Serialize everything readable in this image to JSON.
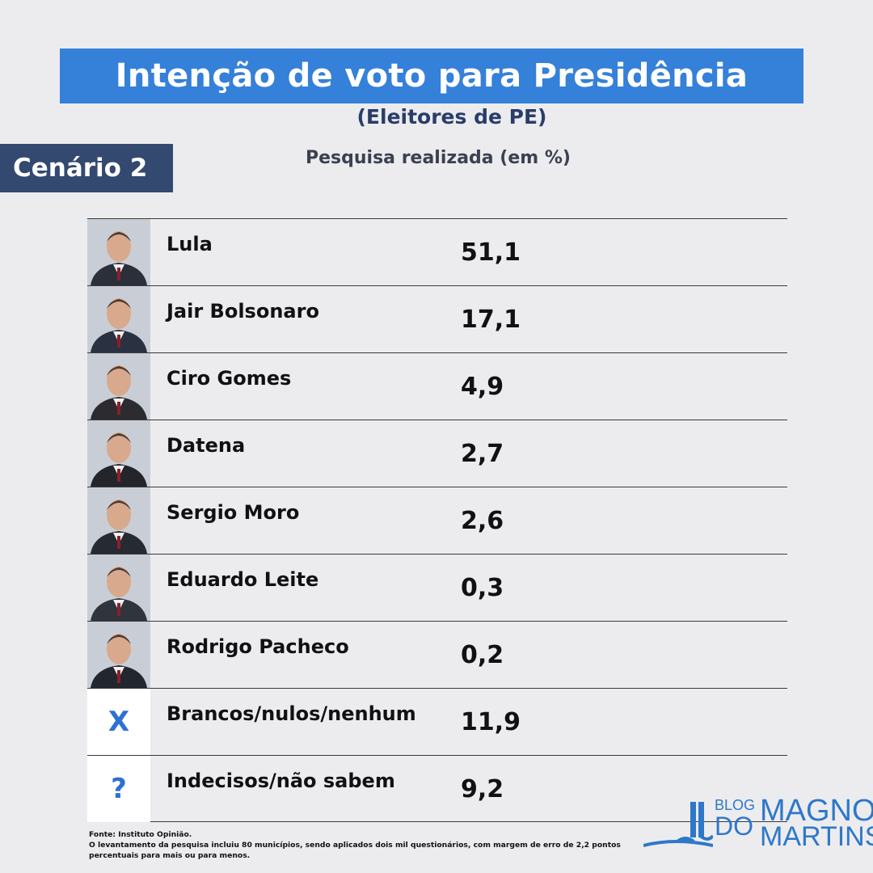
{
  "title": "Intenção de voto para Presidência",
  "subtitle": "(Eleitores de PE)",
  "scenario": "Cenário 2",
  "survey_note": "Pesquisa realizada (em %)",
  "chart_data": {
    "type": "table",
    "title": "Intenção de voto para Presidência",
    "categories": [
      "Lula",
      "Jair Bolsonaro",
      "Ciro Gomes",
      "Datena",
      "Sergio Moro",
      "Eduardo Leite",
      "Rodrigo Pacheco",
      "Brancos/nulos/nenhum",
      "Indecisos/não sabem"
    ],
    "values": [
      51.1,
      17.1,
      4.9,
      2.7,
      2.6,
      0.3,
      0.2,
      11.9,
      9.2
    ],
    "value_labels": [
      "51,1",
      "17,1",
      "4,9",
      "2,7",
      "2,6",
      "0,3",
      "0,2",
      "11,9",
      "9,2"
    ]
  },
  "rows": [
    {
      "name": "Lula",
      "value": "51,1",
      "icon": "lula-photo"
    },
    {
      "name": "Jair Bolsonaro",
      "value": "17,1",
      "icon": "bolsonaro-photo"
    },
    {
      "name": "Ciro Gomes",
      "value": "4,9",
      "icon": "ciro-gomes-photo"
    },
    {
      "name": "Datena",
      "value": "2,7",
      "icon": "datena-photo"
    },
    {
      "name": "Sergio Moro",
      "value": "2,6",
      "icon": "sergio-moro-photo"
    },
    {
      "name": "Eduardo Leite",
      "value": "0,3",
      "icon": "eduardo-leite-photo"
    },
    {
      "name": "Rodrigo Pacheco",
      "value": "0,2",
      "icon": "rodrigo-pacheco-photo"
    },
    {
      "name": "Brancos/nulos/nenhum",
      "value": "11,9",
      "icon": "x-icon",
      "symbol": "X"
    },
    {
      "name": "Indecisos/não sabem",
      "value": "9,2",
      "icon": "question-icon",
      "symbol": "?"
    }
  ],
  "footer": {
    "source": "Fonte:  Instituto Opinião.",
    "note": "O levantamento da pesquisa incluiu 80 municípios, sendo aplicados dois mil questionários, com margem de erro de 2,2 pontos percentuais para mais ou para menos."
  },
  "logo": {
    "blog": "BLOG",
    "do": "DO",
    "magno": "MAGNO",
    "martins": "MARTINS"
  },
  "colors": {
    "title_bar": "#3580d9",
    "scenario_bg": "#33496f",
    "subtitle": "#2a3d69",
    "accent": "#2e70d4",
    "background": "#ececef"
  }
}
